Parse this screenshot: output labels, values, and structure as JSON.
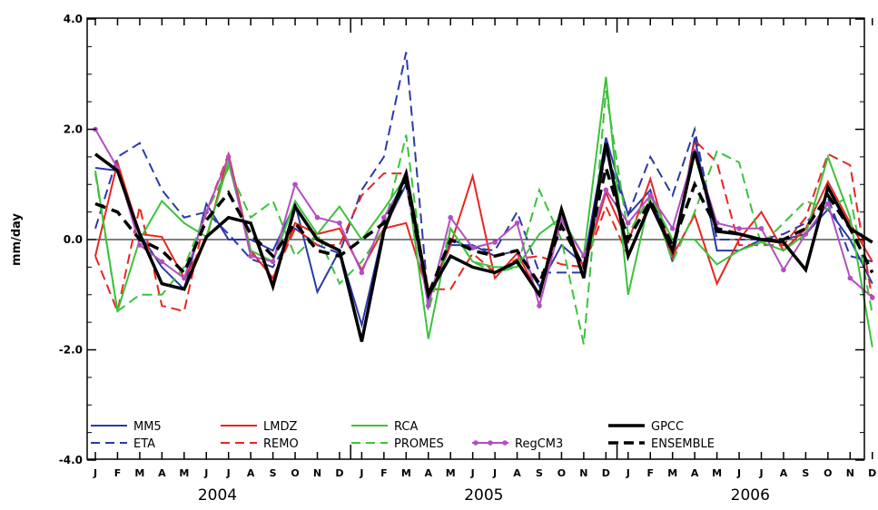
{
  "chart_data": {
    "type": "line",
    "xlabel": "",
    "ylabel": "mm/day",
    "ylim": [
      -4.0,
      4.0
    ],
    "yticks": [
      "4.0",
      "2.0",
      "0.0",
      "-2.0",
      "-4.0"
    ],
    "xtick_labels": [
      "J",
      "F",
      "M",
      "A",
      "M",
      "J",
      "J",
      "A",
      "S",
      "O",
      "N",
      "D",
      "J",
      "F",
      "M",
      "A",
      "M",
      "J",
      "J",
      "A",
      "S",
      "O",
      "N",
      "D",
      "J",
      "F",
      "M",
      "A",
      "M",
      "J",
      "J",
      "A",
      "S",
      "O",
      "N",
      "D"
    ],
    "years": [
      "2004",
      "2005",
      "2006"
    ],
    "zero_line": true,
    "legend_position": "bottom-inside",
    "series": [
      {
        "name": "MM5",
        "color": "#2b3aa8",
        "style": "solid",
        "width": 2,
        "values": [
          1.3,
          1.25,
          0.1,
          -0.5,
          -0.9,
          0.65,
          0.0,
          0.0,
          -0.2,
          0.65,
          -0.95,
          -0.2,
          -1.55,
          0.2,
          1.0,
          -1.1,
          -0.1,
          -0.1,
          -0.3,
          -0.2,
          -0.85,
          -0.1,
          -0.45,
          1.85,
          0.45,
          0.9,
          -0.4,
          1.85,
          -0.2,
          -0.2,
          0.0,
          0.0,
          0.1,
          0.55,
          0.0,
          -0.8
        ]
      },
      {
        "name": "ETA",
        "color": "#2b3aa8",
        "style": "dashed",
        "width": 2,
        "values": [
          0.2,
          1.5,
          1.75,
          0.9,
          0.4,
          0.5,
          0.1,
          -0.35,
          -0.5,
          0.2,
          -0.1,
          -0.25,
          0.9,
          1.5,
          3.4,
          -1.1,
          0.0,
          -0.15,
          -0.2,
          0.5,
          -0.6,
          -0.6,
          -0.6,
          1.6,
          0.45,
          1.5,
          0.8,
          2.0,
          0.0,
          0.0,
          0.0,
          0.1,
          0.3,
          0.75,
          -0.3,
          -0.4
        ]
      },
      {
        "name": "LMDZ",
        "color": "#e8251f",
        "style": "solid",
        "width": 2,
        "values": [
          -0.3,
          1.4,
          0.1,
          0.05,
          -0.7,
          0.0,
          1.55,
          -0.2,
          -0.7,
          0.3,
          0.1,
          0.2,
          -0.55,
          0.2,
          0.3,
          -1.0,
          -0.1,
          1.15,
          -0.7,
          -0.25,
          -1.0,
          0.4,
          -0.5,
          0.85,
          -0.05,
          1.1,
          -0.3,
          0.45,
          -0.8,
          0.0,
          0.5,
          -0.2,
          0.2,
          1.05,
          0.3,
          -0.4
        ]
      },
      {
        "name": "REMO",
        "color": "#e8251f",
        "style": "dashed",
        "width": 2,
        "values": [
          -0.3,
          -1.3,
          0.6,
          -1.2,
          -1.3,
          0.5,
          1.55,
          -0.2,
          -0.7,
          0.2,
          -0.1,
          -0.1,
          0.8,
          1.2,
          1.2,
          -0.9,
          -0.9,
          -0.25,
          -0.6,
          -0.35,
          -0.3,
          -0.45,
          -0.5,
          0.6,
          -0.3,
          0.7,
          -0.3,
          1.8,
          1.4,
          -0.1,
          -0.1,
          -0.1,
          0.4,
          1.55,
          1.35,
          -1.1
        ]
      },
      {
        "name": "RCA",
        "color": "#3cc23c",
        "style": "solid",
        "width": 2,
        "values": [
          1.25,
          -1.3,
          0.0,
          0.7,
          0.3,
          0.05,
          1.4,
          -0.2,
          -0.4,
          0.7,
          0.1,
          0.6,
          0.0,
          0.55,
          1.15,
          -1.8,
          0.2,
          -0.4,
          -0.5,
          -0.5,
          0.1,
          0.4,
          -0.3,
          2.95,
          -1.0,
          0.8,
          0.0,
          0.0,
          -0.45,
          -0.2,
          -0.05,
          -0.2,
          0.1,
          1.5,
          0.4,
          -1.95
        ]
      },
      {
        "name": "PROMES",
        "color": "#3cc23c",
        "style": "dashed",
        "width": 2,
        "values": [
          1.2,
          -1.3,
          -1.0,
          -1.0,
          -0.5,
          0.5,
          1.3,
          0.4,
          0.7,
          -0.3,
          0.1,
          -0.8,
          -0.4,
          0.2,
          1.9,
          -1.3,
          0.2,
          -0.4,
          -0.6,
          -0.5,
          0.9,
          0.0,
          -1.9,
          2.7,
          0.1,
          0.8,
          -0.4,
          0.5,
          1.6,
          1.4,
          -0.1,
          0.3,
          0.7,
          0.55,
          0.8,
          -1.35
        ]
      },
      {
        "name": "RegCM3",
        "color": "#b24fc1",
        "style": "solid",
        "width": 2,
        "markers": true,
        "values": [
          2.0,
          1.3,
          -0.1,
          -0.4,
          -0.7,
          0.5,
          1.5,
          -0.3,
          -0.4,
          1.0,
          0.4,
          0.3,
          -0.6,
          0.4,
          1.1,
          -1.2,
          0.4,
          -0.15,
          -0.05,
          0.3,
          -1.2,
          0.35,
          -0.3,
          0.9,
          0.3,
          0.8,
          0.2,
          1.6,
          0.3,
          0.2,
          0.2,
          -0.55,
          0.1,
          0.65,
          -0.7,
          -1.05
        ]
      },
      {
        "name": "GPCC",
        "color": "#000000",
        "style": "solid",
        "width": 3.5,
        "values": [
          1.55,
          1.25,
          0.1,
          -0.8,
          -0.9,
          0.05,
          0.4,
          0.3,
          -0.85,
          0.6,
          0.0,
          -0.2,
          -1.85,
          0.15,
          1.2,
          -1.0,
          -0.3,
          -0.5,
          -0.6,
          -0.4,
          -1.0,
          0.55,
          -0.7,
          1.75,
          -0.3,
          0.65,
          -0.2,
          1.6,
          0.15,
          0.1,
          0.0,
          -0.05,
          -0.55,
          0.95,
          0.2,
          -0.05
        ]
      },
      {
        "name": "ENSEMBLE",
        "color": "#000000",
        "style": "dashed",
        "width": 3.5,
        "values": [
          0.65,
          0.5,
          0.0,
          -0.2,
          -0.6,
          0.35,
          0.85,
          0.1,
          -0.3,
          0.3,
          -0.2,
          -0.3,
          0.0,
          0.3,
          1.05,
          -1.0,
          0.0,
          -0.2,
          -0.3,
          -0.2,
          -0.8,
          0.25,
          -0.5,
          1.3,
          0.0,
          0.7,
          -0.1,
          1.0,
          0.2,
          0.1,
          0.0,
          0.0,
          0.2,
          0.8,
          0.2,
          -0.6
        ]
      }
    ]
  }
}
